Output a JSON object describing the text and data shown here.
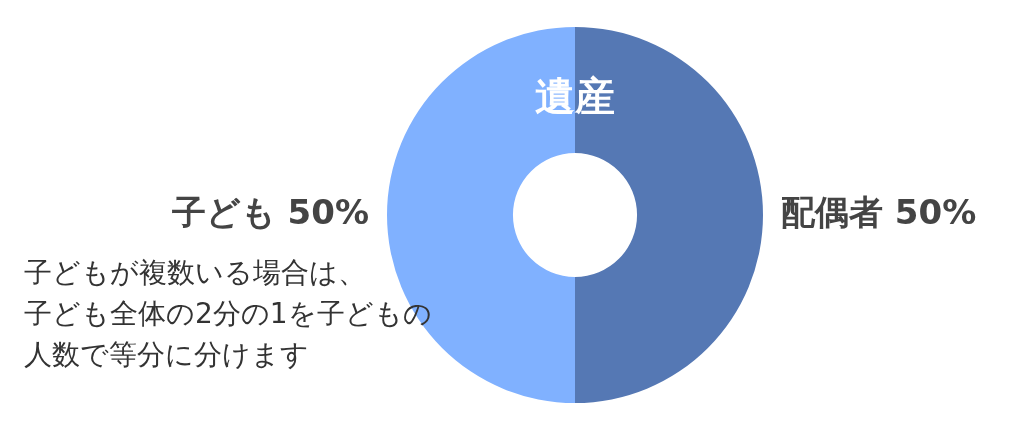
{
  "chart_data": {
    "type": "donut",
    "title": "遺産",
    "categories": [
      "配偶者",
      "子ども"
    ],
    "values": [
      50,
      50
    ],
    "value_labels": [
      "50%",
      "50%"
    ],
    "colors": [
      "#5578b4",
      "#80b1ff"
    ],
    "annotations": [
      "子どもが複数いる場合は、",
      "子ども全体の2分の1を子どもの",
      "人数で等分に分けます"
    ],
    "legend": false
  }
}
